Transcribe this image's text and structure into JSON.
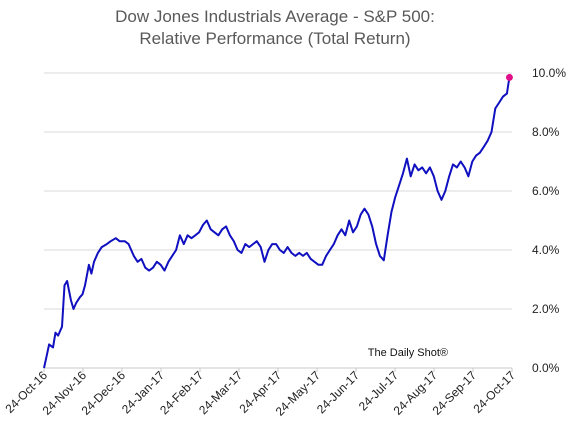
{
  "title_line1": "Dow Jones Industrials Average - S&P 500:",
  "title_line2": "Relative Performance (Total Return)",
  "source": "The Daily Shot®",
  "chart_data": {
    "type": "line",
    "title": "Dow Jones Industrials Average - S&P 500: Relative Performance (Total Return)",
    "x_tick_labels": [
      "24-Oct-16",
      "24-Nov-16",
      "24-Dec-16",
      "24-Jan-17",
      "24-Feb-17",
      "24-Mar-17",
      "24-Apr-17",
      "24-May-17",
      "24-Jun-17",
      "24-Jul-17",
      "24-Aug-17",
      "24-Sep-17",
      "24-Oct-17"
    ],
    "y_tick_labels": [
      "0.0%",
      "2.0%",
      "4.0%",
      "6.0%",
      "8.0%",
      "10.0%"
    ],
    "ylim": [
      0,
      10
    ],
    "xlim": [
      "2016-10-24",
      "2017-10-24"
    ],
    "grid": true,
    "line_color": "#1010c0",
    "endpoint_color": "#e0108a",
    "series": [
      {
        "values": [
          [
            "2016-10-24",
            0.0
          ],
          [
            "2016-10-26",
            0.4
          ],
          [
            "2016-10-28",
            0.8
          ],
          [
            "2016-10-31",
            0.7
          ],
          [
            "2016-11-02",
            1.2
          ],
          [
            "2016-11-04",
            1.1
          ],
          [
            "2016-11-07",
            1.4
          ],
          [
            "2016-11-09",
            2.8
          ],
          [
            "2016-11-11",
            2.95
          ],
          [
            "2016-11-14",
            2.3
          ],
          [
            "2016-11-16",
            2.0
          ],
          [
            "2016-11-18",
            2.2
          ],
          [
            "2016-11-21",
            2.4
          ],
          [
            "2016-11-23",
            2.5
          ],
          [
            "2016-11-25",
            2.8
          ],
          [
            "2016-11-28",
            3.5
          ],
          [
            "2016-11-30",
            3.2
          ],
          [
            "2016-12-02",
            3.6
          ],
          [
            "2016-12-05",
            3.9
          ],
          [
            "2016-12-08",
            4.1
          ],
          [
            "2016-12-12",
            4.2
          ],
          [
            "2016-12-15",
            4.3
          ],
          [
            "2016-12-19",
            4.4
          ],
          [
            "2016-12-22",
            4.3
          ],
          [
            "2016-12-26",
            4.3
          ],
          [
            "2016-12-29",
            4.2
          ],
          [
            "2017-01-02",
            3.8
          ],
          [
            "2017-01-05",
            3.6
          ],
          [
            "2017-01-08",
            3.7
          ],
          [
            "2017-01-11",
            3.4
          ],
          [
            "2017-01-14",
            3.3
          ],
          [
            "2017-01-17",
            3.4
          ],
          [
            "2017-01-20",
            3.6
          ],
          [
            "2017-01-23",
            3.5
          ],
          [
            "2017-01-26",
            3.3
          ],
          [
            "2017-01-29",
            3.6
          ],
          [
            "2017-02-01",
            3.8
          ],
          [
            "2017-02-04",
            4.0
          ],
          [
            "2017-02-07",
            4.5
          ],
          [
            "2017-02-10",
            4.2
          ],
          [
            "2017-02-13",
            4.5
          ],
          [
            "2017-02-16",
            4.4
          ],
          [
            "2017-02-19",
            4.5
          ],
          [
            "2017-02-22",
            4.6
          ],
          [
            "2017-02-25",
            4.85
          ],
          [
            "2017-02-28",
            5.0
          ],
          [
            "2017-03-03",
            4.7
          ],
          [
            "2017-03-06",
            4.6
          ],
          [
            "2017-03-09",
            4.5
          ],
          [
            "2017-03-12",
            4.7
          ],
          [
            "2017-03-15",
            4.8
          ],
          [
            "2017-03-18",
            4.5
          ],
          [
            "2017-03-21",
            4.3
          ],
          [
            "2017-03-24",
            4.0
          ],
          [
            "2017-03-27",
            3.9
          ],
          [
            "2017-03-30",
            4.2
          ],
          [
            "2017-04-02",
            4.1
          ],
          [
            "2017-04-05",
            4.2
          ],
          [
            "2017-04-08",
            4.3
          ],
          [
            "2017-04-11",
            4.1
          ],
          [
            "2017-04-14",
            3.6
          ],
          [
            "2017-04-17",
            4.0
          ],
          [
            "2017-04-20",
            4.2
          ],
          [
            "2017-04-23",
            4.2
          ],
          [
            "2017-04-26",
            4.0
          ],
          [
            "2017-04-29",
            3.9
          ],
          [
            "2017-05-02",
            4.1
          ],
          [
            "2017-05-05",
            3.9
          ],
          [
            "2017-05-08",
            3.8
          ],
          [
            "2017-05-11",
            3.9
          ],
          [
            "2017-05-14",
            3.8
          ],
          [
            "2017-05-17",
            3.9
          ],
          [
            "2017-05-20",
            3.7
          ],
          [
            "2017-05-23",
            3.6
          ],
          [
            "2017-05-26",
            3.5
          ],
          [
            "2017-05-29",
            3.5
          ],
          [
            "2017-06-01",
            3.8
          ],
          [
            "2017-06-04",
            4.0
          ],
          [
            "2017-06-07",
            4.2
          ],
          [
            "2017-06-10",
            4.5
          ],
          [
            "2017-06-13",
            4.7
          ],
          [
            "2017-06-16",
            4.5
          ],
          [
            "2017-06-19",
            5.0
          ],
          [
            "2017-06-22",
            4.6
          ],
          [
            "2017-06-25",
            4.8
          ],
          [
            "2017-06-28",
            5.2
          ],
          [
            "2017-07-01",
            5.4
          ],
          [
            "2017-07-04",
            5.2
          ],
          [
            "2017-07-07",
            4.8
          ],
          [
            "2017-07-10",
            4.2
          ],
          [
            "2017-07-13",
            3.8
          ],
          [
            "2017-07-16",
            3.65
          ],
          [
            "2017-07-19",
            4.5
          ],
          [
            "2017-07-22",
            5.3
          ],
          [
            "2017-07-25",
            5.8
          ],
          [
            "2017-07-28",
            6.2
          ],
          [
            "2017-07-31",
            6.6
          ],
          [
            "2017-08-03",
            7.1
          ],
          [
            "2017-08-06",
            6.5
          ],
          [
            "2017-08-09",
            6.9
          ],
          [
            "2017-08-12",
            6.7
          ],
          [
            "2017-08-15",
            6.8
          ],
          [
            "2017-08-18",
            6.6
          ],
          [
            "2017-08-21",
            6.8
          ],
          [
            "2017-08-24",
            6.5
          ],
          [
            "2017-08-27",
            6.0
          ],
          [
            "2017-08-30",
            5.7
          ],
          [
            "2017-09-02",
            6.0
          ],
          [
            "2017-09-05",
            6.5
          ],
          [
            "2017-09-08",
            6.9
          ],
          [
            "2017-09-11",
            6.8
          ],
          [
            "2017-09-14",
            7.0
          ],
          [
            "2017-09-17",
            6.8
          ],
          [
            "2017-09-20",
            6.5
          ],
          [
            "2017-09-23",
            7.0
          ],
          [
            "2017-09-26",
            7.2
          ],
          [
            "2017-09-29",
            7.3
          ],
          [
            "2017-10-02",
            7.5
          ],
          [
            "2017-10-05",
            7.7
          ],
          [
            "2017-10-08",
            8.0
          ],
          [
            "2017-10-11",
            8.8
          ],
          [
            "2017-10-14",
            9.0
          ],
          [
            "2017-10-17",
            9.2
          ],
          [
            "2017-10-20",
            9.3
          ],
          [
            "2017-10-22",
            9.85
          ]
        ]
      }
    ]
  }
}
